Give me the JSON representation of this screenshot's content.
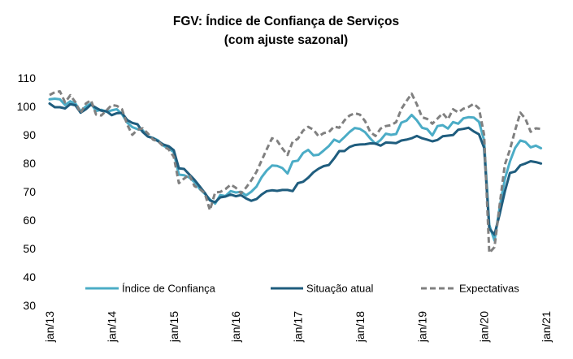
{
  "chart_data": {
    "type": "line",
    "title": "FGV: Índice de Confiança de Serviços",
    "subtitle": "(com ajuste sazonal)",
    "xlabel": "",
    "ylabel": "",
    "ylim": [
      30,
      110
    ],
    "yticks": [
      "30",
      "40",
      "50",
      "60",
      "70",
      "80",
      "90",
      "100",
      "110"
    ],
    "x_start": "2013-01",
    "x_end": "2021-01",
    "xticks": [
      "jan/13",
      "jan/14",
      "jan/15",
      "jan/16",
      "jan/17",
      "jan/18",
      "jan/19",
      "jan/20",
      "jan/21"
    ],
    "grid": false,
    "legend_position": "bottom",
    "series": [
      {
        "name": "Índice de Confiança",
        "color": "#4BACC6",
        "dash": "solid",
        "values": [
          102.5,
          102.7,
          102.5,
          100.5,
          101.8,
          101.0,
          98.3,
          100.0,
          101.0,
          98.4,
          98.8,
          98.1,
          98.6,
          99.0,
          97.3,
          94.3,
          92.7,
          92.0,
          91.6,
          89.4,
          88.9,
          88.0,
          86.2,
          85.2,
          83.9,
          76.0,
          75.8,
          75.0,
          73.4,
          71.0,
          69.3,
          67.3,
          65.8,
          68.8,
          68.5,
          70.2,
          69.7,
          69.9,
          68.7,
          70.0,
          71.8,
          75.1,
          77.5,
          79.2,
          79.1,
          78.3,
          76.4,
          80.6,
          80.9,
          83.6,
          84.7,
          82.8,
          83.0,
          84.5,
          86.1,
          88.3,
          87.5,
          89.2,
          91.0,
          92.4,
          92.1,
          90.9,
          88.7,
          86.8,
          88.2,
          90.4,
          90.0,
          90.3,
          94.3,
          95.0,
          97.0,
          95.1,
          92.5,
          92.0,
          89.8,
          93.1,
          93.4,
          92.2,
          94.5,
          93.9,
          95.8,
          96.2,
          96.1,
          94.6,
          88.1,
          58.3,
          52.8,
          64.4,
          74.4,
          80.6,
          85.4,
          88.0,
          87.5,
          85.6,
          86.2,
          85.3
        ]
      },
      {
        "name": "Situação atual",
        "color": "#1F5D7E",
        "dash": "solid",
        "values": [
          101.0,
          99.7,
          99.7,
          99.3,
          100.8,
          100.4,
          97.8,
          99.0,
          100.6,
          99.5,
          98.5,
          98.3,
          96.9,
          97.6,
          97.7,
          95.2,
          94.2,
          93.7,
          91.0,
          89.4,
          88.8,
          87.7,
          86.6,
          86.0,
          84.6,
          78.2,
          78.0,
          76.1,
          74.2,
          71.9,
          69.6,
          66.9,
          66.3,
          68.0,
          68.3,
          69.0,
          68.4,
          68.8,
          67.6,
          66.8,
          67.4,
          69.0,
          70.2,
          70.5,
          70.3,
          70.6,
          70.6,
          70.2,
          73.0,
          73.5,
          74.9,
          76.8,
          78.1,
          79.0,
          79.4,
          81.7,
          84.3,
          84.3,
          85.7,
          86.4,
          86.6,
          86.7,
          87.0,
          86.9,
          86.2,
          87.3,
          87.2,
          87.1,
          88.0,
          88.3,
          88.8,
          89.6,
          88.8,
          88.3,
          87.7,
          88.2,
          89.5,
          89.7,
          89.9,
          91.8,
          92.1,
          92.5,
          91.2,
          90.2,
          85.5,
          57.0,
          54.9,
          62.0,
          70.0,
          76.6,
          77.1,
          79.3,
          79.9,
          80.7,
          80.4,
          79.9
        ]
      },
      {
        "name": "Expectativas",
        "color": "#808080",
        "dash": "dashed",
        "values": [
          104.0,
          105.0,
          105.3,
          101.4,
          103.9,
          101.5,
          97.6,
          101.0,
          102.2,
          97.1,
          96.8,
          98.6,
          100.5,
          100.2,
          99.0,
          93.6,
          90.0,
          91.8,
          92.3,
          90.5,
          88.3,
          87.7,
          85.9,
          84.9,
          82.3,
          73.0,
          74.6,
          76.0,
          72.0,
          71.0,
          69.5,
          63.5,
          69.7,
          69.9,
          70.9,
          72.5,
          71.4,
          69.4,
          71.5,
          74.0,
          77.0,
          81.0,
          85.0,
          88.8,
          87.9,
          85.2,
          82.9,
          87.6,
          88.6,
          91.5,
          92.8,
          91.8,
          89.5,
          90.6,
          91.0,
          92.9,
          92.5,
          95.1,
          96.8,
          97.6,
          97.1,
          94.8,
          91.0,
          89.6,
          92.2,
          93.1,
          93.4,
          94.5,
          99.1,
          101.9,
          104.5,
          100.7,
          96.2,
          95.6,
          93.9,
          95.7,
          97.6,
          95.5,
          99.0,
          97.9,
          99.2,
          99.8,
          100.9,
          99.3,
          90.1,
          48.5,
          50.5,
          65.2,
          79.5,
          84.8,
          91.6,
          97.8,
          95.6,
          91.1,
          92.3,
          92.1
        ]
      }
    ]
  }
}
